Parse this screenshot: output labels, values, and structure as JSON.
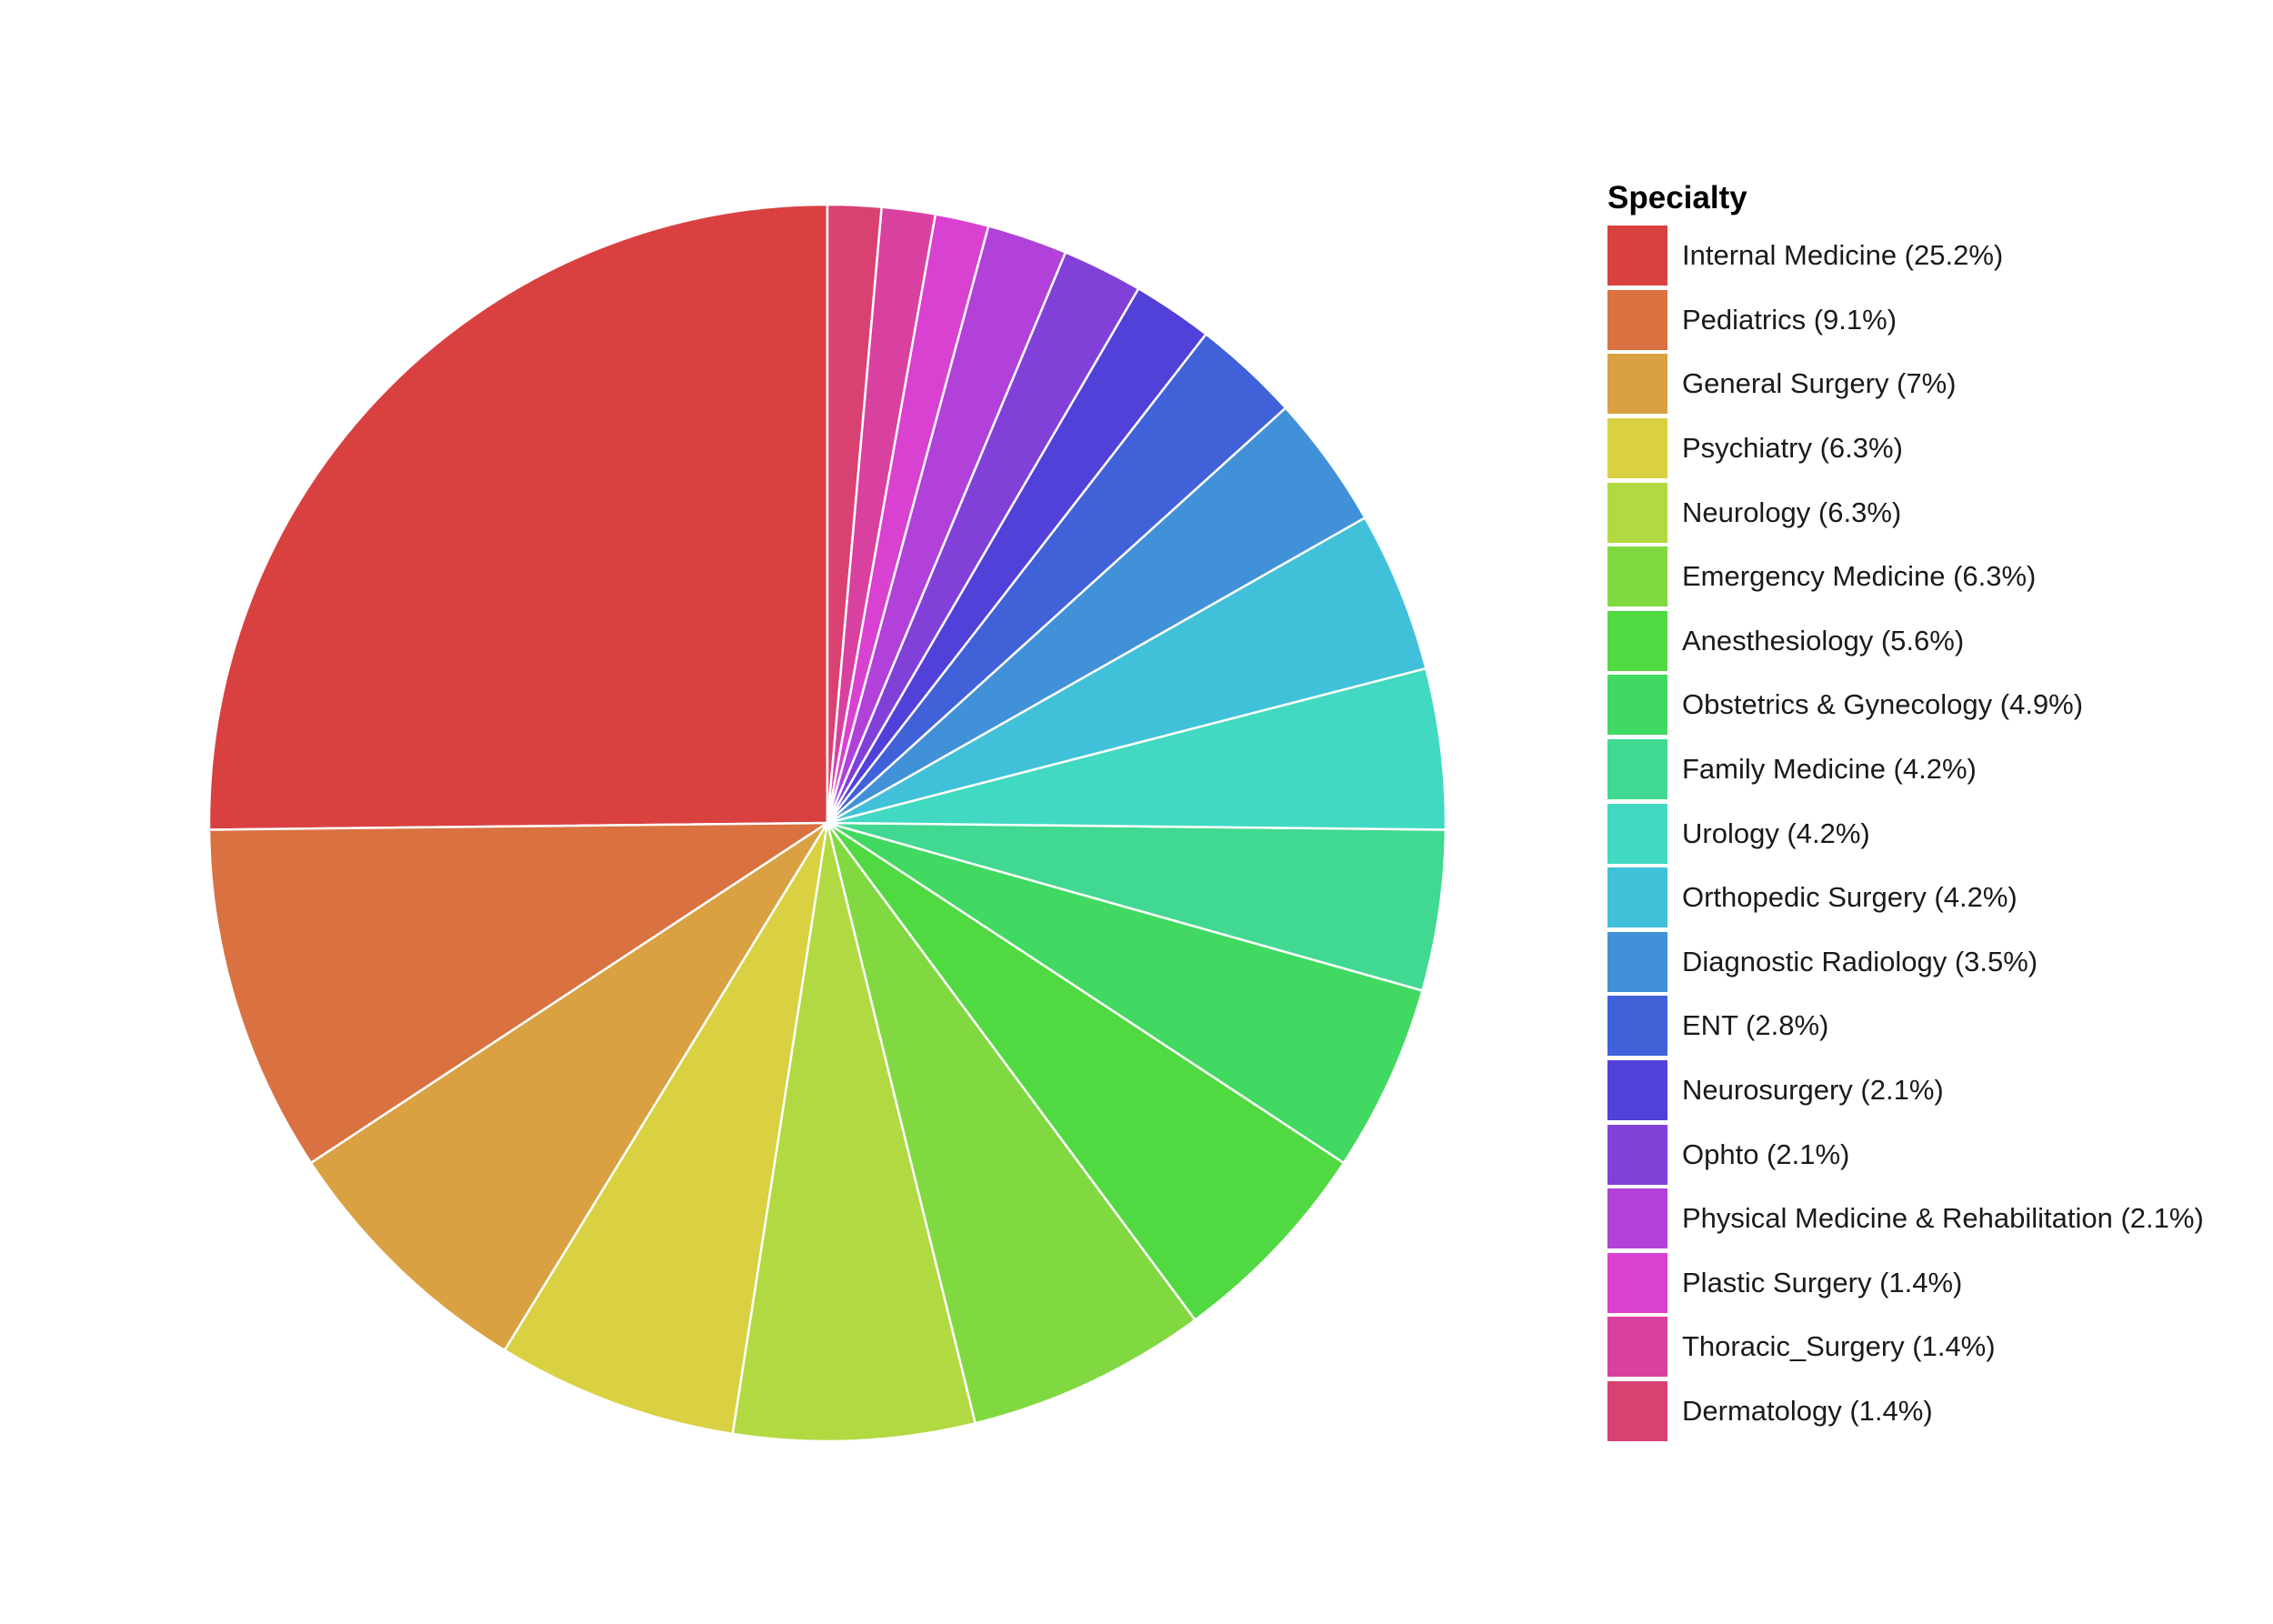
{
  "chart_data": {
    "type": "pie",
    "legend_title": "Specialty",
    "legend_position": "right",
    "start_angle": "12 o'clock",
    "direction": "clockwise-from-last",
    "slices": [
      {
        "label": "Internal Medicine (25.2%)",
        "value": 25.2,
        "color": "#D94141"
      },
      {
        "label": "Pediatrics (9.1%)",
        "value": 9.1,
        "color": "#D97141"
      },
      {
        "label": "General Surgery (7%)",
        "value": 7.0,
        "color": "#D9A141"
      },
      {
        "label": "Psychiatry (6.3%)",
        "value": 6.3,
        "color": "#D9D141"
      },
      {
        "label": "Neurology (6.3%)",
        "value": 6.3,
        "color": "#B1D941"
      },
      {
        "label": "Emergency Medicine (6.3%)",
        "value": 6.3,
        "color": "#81D941"
      },
      {
        "label": "Anesthesiology (5.6%)",
        "value": 5.6,
        "color": "#51D941"
      },
      {
        "label": "Obstetrics & Gynecology (4.9%)",
        "value": 4.9,
        "color": "#41D961"
      },
      {
        "label": "Family Medicine (4.2%)",
        "value": 4.2,
        "color": "#41D991"
      },
      {
        "label": "Urology (4.2%)",
        "value": 4.2,
        "color": "#41D9C1"
      },
      {
        "label": "Orthopedic Surgery (4.2%)",
        "value": 4.2,
        "color": "#41C1D9"
      },
      {
        "label": "Diagnostic Radiology (3.5%)",
        "value": 3.5,
        "color": "#4191D9"
      },
      {
        "label": "ENT (2.8%)",
        "value": 2.8,
        "color": "#4161D9"
      },
      {
        "label": "Neurosurgery (2.1%)",
        "value": 2.1,
        "color": "#5141D9"
      },
      {
        "label": "Ophto (2.1%)",
        "value": 2.1,
        "color": "#8141D9"
      },
      {
        "label": "Physical Medicine & Rehabilitation (2.1%)",
        "value": 2.1,
        "color": "#B141D9"
      },
      {
        "label": "Plastic Surgery (1.4%)",
        "value": 1.4,
        "color": "#D941D1"
      },
      {
        "label": "Thoracic_Surgery (1.4%)",
        "value": 1.4,
        "color": "#D941A1"
      },
      {
        "label": "Dermatology (1.4%)",
        "value": 1.4,
        "color": "#D94171"
      }
    ]
  }
}
